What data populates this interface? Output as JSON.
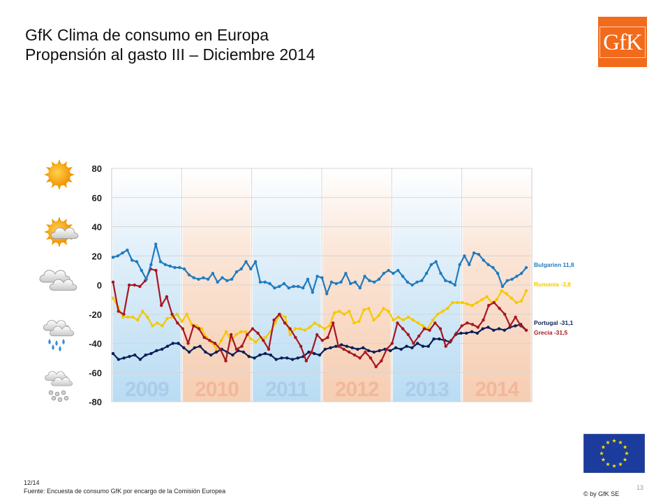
{
  "header": {
    "title_line1": "GfK Clima de consumo en Europa",
    "title_line2": "Propensión al gasto III – Diciembre 2014",
    "logo_text": "GfK"
  },
  "footer": {
    "date": "12/14",
    "source": "Fuente: Encuesta de consumo GfK por encargo de la Comisión Europea",
    "page_number": "13",
    "copyright": "© by GfK SE"
  },
  "weather_icons": [
    "sun-icon",
    "sun-cloud-icon",
    "cloud-icon",
    "rain-cloud-icon",
    "snow-cloud-icon"
  ],
  "colors": {
    "Bulgarien": "#1f7bbf",
    "Rumania": "#f5c800",
    "Portugal": "#0b1f57",
    "Grecia": "#a81620",
    "band_blue": "#c9e3f5",
    "band_orange": "#f8d6c2"
  },
  "chart_data": {
    "type": "line",
    "years": [
      "2009",
      "2010",
      "2011",
      "2012",
      "2013",
      "2014"
    ],
    "x_start": "2009-01",
    "x_end": "2014-12",
    "ylim": [
      -80,
      80
    ],
    "yticks": [
      80,
      60,
      40,
      20,
      0,
      -20,
      -40,
      -60,
      -80
    ],
    "grid": true,
    "series": [
      {
        "name": "Bulgarien",
        "label": "Bulgarien 11,8",
        "values": [
          19,
          20,
          22,
          24,
          17,
          16,
          10,
          4,
          14,
          28,
          16,
          14,
          13,
          12,
          12,
          11,
          7,
          5,
          4,
          5,
          4,
          8,
          2,
          5,
          3,
          4,
          9,
          11,
          16,
          11,
          16,
          2,
          2,
          1,
          -2,
          -1,
          1,
          -2,
          -1,
          -1,
          -2,
          4,
          -5,
          6,
          5,
          -6,
          2,
          1,
          2,
          8,
          1,
          2,
          -2,
          6,
          3,
          2,
          4,
          8,
          10,
          8,
          10,
          6,
          2,
          0,
          2,
          3,
          8,
          14,
          16,
          8,
          3,
          2,
          0,
          14,
          20,
          14,
          22,
          21,
          17,
          14,
          12,
          8,
          -1,
          3,
          4,
          6,
          8,
          12
        ]
      },
      {
        "name": "Rumania",
        "label": "Rumania -3,8",
        "values": [
          -9,
          -15,
          -22,
          -22,
          -22,
          -24,
          -18,
          -22,
          -28,
          -26,
          -28,
          -23,
          -22,
          -20,
          -25,
          -20,
          -27,
          -28,
          -30,
          -36,
          -39,
          -44,
          -38,
          -32,
          -38,
          -34,
          -32,
          -32,
          -37,
          -39,
          -36,
          -36,
          -32,
          -26,
          -20,
          -22,
          -34,
          -30,
          -30,
          -31,
          -29,
          -26,
          -28,
          -30,
          -28,
          -19,
          -18,
          -20,
          -18,
          -26,
          -25,
          -17,
          -16,
          -24,
          -21,
          -16,
          -18,
          -24,
          -22,
          -24,
          -22,
          -24,
          -26,
          -28,
          -30,
          -24,
          -20,
          -18,
          -16,
          -12,
          -12,
          -12,
          -13,
          -14,
          -12,
          -10,
          -8,
          -12,
          -10,
          -4,
          -6,
          -9,
          -12,
          -11,
          -4
        ]
      },
      {
        "name": "Portugal",
        "label": "Portugal -31,1",
        "values": [
          -47,
          -51,
          -50,
          -49,
          -48,
          -51,
          -48,
          -47,
          -45,
          -44,
          -42,
          -40,
          -40,
          -43,
          -46,
          -43,
          -42,
          -46,
          -48,
          -46,
          -44,
          -46,
          -48,
          -45,
          -46,
          -49,
          -50,
          -48,
          -47,
          -48,
          -51,
          -50,
          -50,
          -51,
          -50,
          -49,
          -46,
          -47,
          -48,
          -44,
          -43,
          -42,
          -41,
          -42,
          -43,
          -44,
          -43,
          -45,
          -46,
          -45,
          -44,
          -45,
          -43,
          -44,
          -42,
          -43,
          -40,
          -42,
          -42,
          -37,
          -37,
          -38,
          -39,
          -34,
          -33,
          -33,
          -32,
          -33,
          -30,
          -29,
          -31,
          -30,
          -31,
          -29,
          -28,
          -27,
          -31
        ]
      },
      {
        "name": "Grecia",
        "label": "Grecia -31,5",
        "values": [
          2,
          -18,
          -20,
          0,
          0,
          -1,
          3,
          11,
          10,
          -14,
          -8,
          -20,
          -26,
          -30,
          -40,
          -28,
          -30,
          -36,
          -38,
          -40,
          -44,
          -52,
          -34,
          -44,
          -42,
          -34,
          -30,
          -33,
          -38,
          -44,
          -24,
          -20,
          -26,
          -30,
          -36,
          -42,
          -52,
          -46,
          -34,
          -38,
          -36,
          -26,
          -42,
          -44,
          -46,
          -48,
          -50,
          -46,
          -50,
          -56,
          -52,
          -44,
          -40,
          -26,
          -30,
          -34,
          -40,
          -35,
          -30,
          -31,
          -26,
          -30,
          -42,
          -38,
          -33,
          -28,
          -26,
          -27,
          -29,
          -24,
          -14,
          -12,
          -16,
          -20,
          -28,
          -22,
          -28,
          -31
        ]
      }
    ]
  }
}
